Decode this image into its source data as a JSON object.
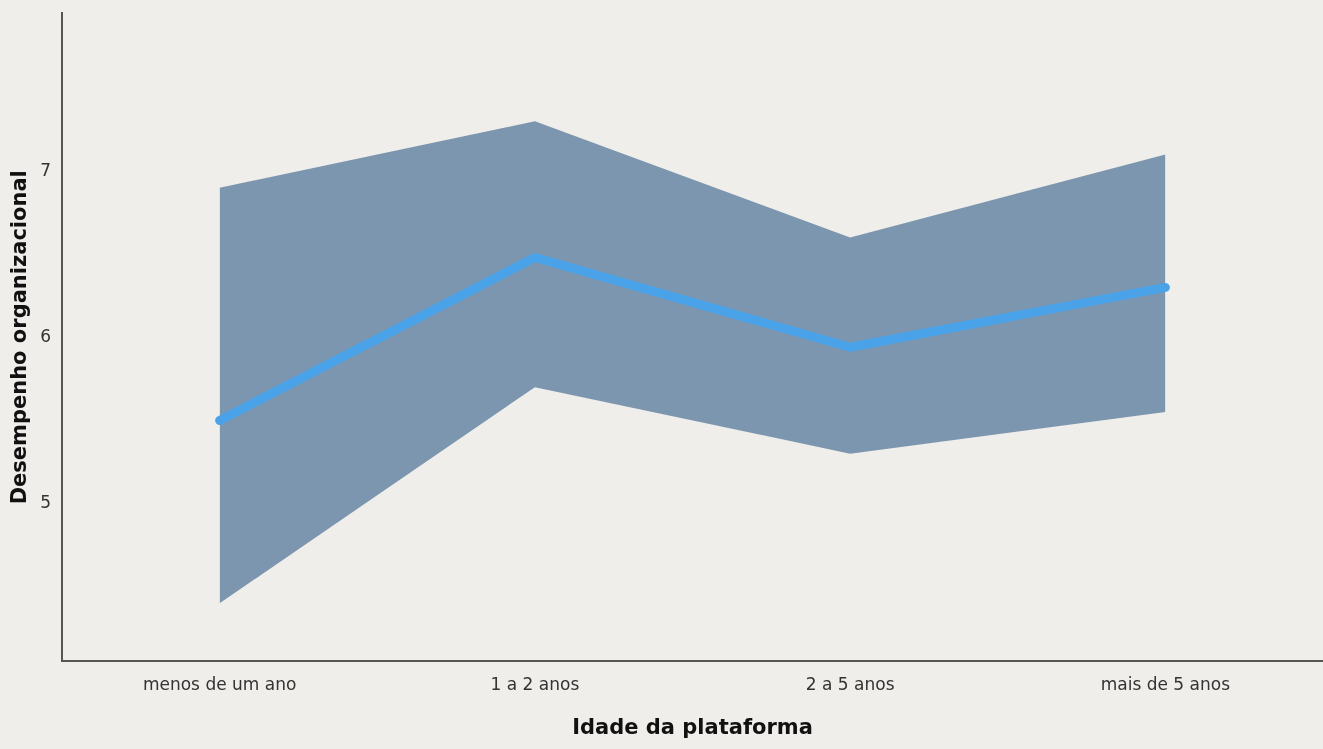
{
  "chart_data": {
    "type": "line",
    "xlabel": "Idade da plataforma",
    "ylabel": "Desempenho organizacional",
    "categories": [
      "menos de um ano",
      "1 a 2 anos",
      "2 a 5 anos",
      "mais de 5 anos"
    ],
    "series": [
      {
        "color": "#4aa3e8",
        "values": [
          5.5,
          6.48,
          5.94,
          6.3
        ],
        "lower": [
          4.4,
          5.7,
          5.3,
          5.55
        ],
        "upper": [
          6.9,
          7.3,
          6.6,
          7.1
        ]
      }
    ],
    "ylim": [
      4.05,
      7.95
    ],
    "yticks": [
      5,
      6,
      7
    ],
    "grid": false,
    "legend": false,
    "marker": "none",
    "line_style": "solid"
  }
}
